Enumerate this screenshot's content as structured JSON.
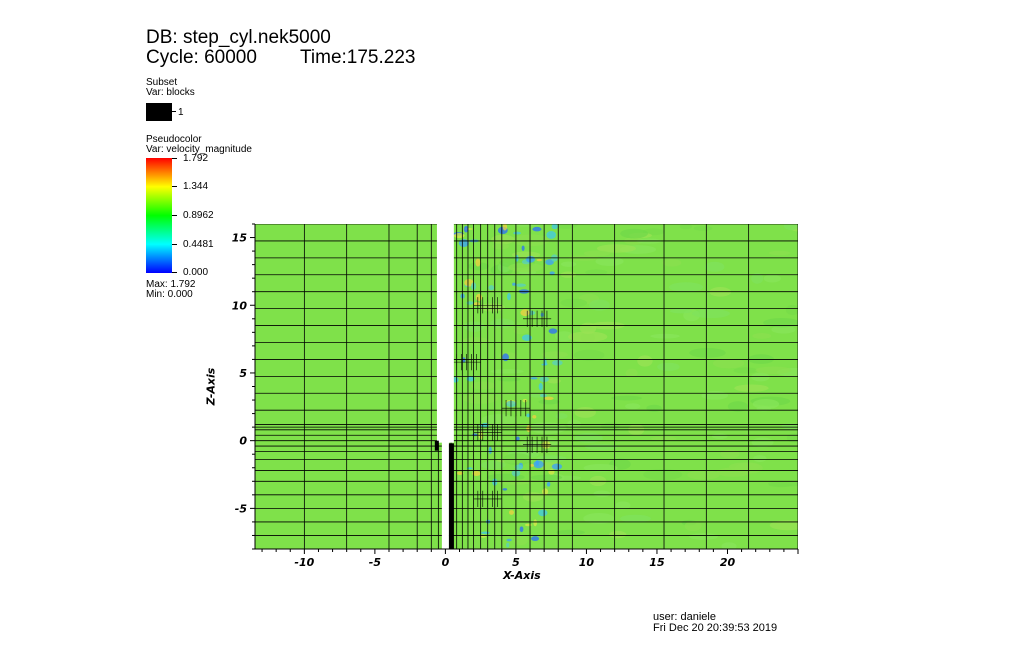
{
  "header": {
    "db_line": "DB: step_cyl.nek5000",
    "cycle_line": "Cycle: 60000",
    "time_line": "Time:175.223"
  },
  "subset_legend": {
    "title": "Subset",
    "var": "Var: blocks",
    "item_label": "1",
    "swatch_color": "#000000"
  },
  "pseudocolor_legend": {
    "title": "Pseudocolor",
    "var": "Var: velocity_magnitude",
    "ticks": [
      "1.792",
      "1.344",
      "0.8962",
      "0.4481",
      "0.000"
    ],
    "max_label": "Max:  1.792",
    "min_label": "Min:  0.000",
    "colormap": [
      "#0000ff",
      "#00ffff",
      "#00ff00",
      "#ffff00",
      "#ff0000"
    ]
  },
  "plot": {
    "x_axis_title": "X-Axis",
    "z_axis_title": "Z-Axis",
    "x_range": [
      -13.5,
      25
    ],
    "z_range": [
      -8,
      16
    ],
    "x_ticks": [
      "-10",
      "-5",
      "0",
      "5",
      "10",
      "15",
      "20"
    ],
    "z_ticks": [
      "15",
      "10",
      "5",
      "0",
      "-5"
    ],
    "field_color": "#7fe14a",
    "mesh_color": "#000000",
    "obstacle_color": "#ffffff"
  },
  "footer": {
    "user": "user: daniele",
    "date": "Fri Dec 20 20:39:53 2019"
  }
}
